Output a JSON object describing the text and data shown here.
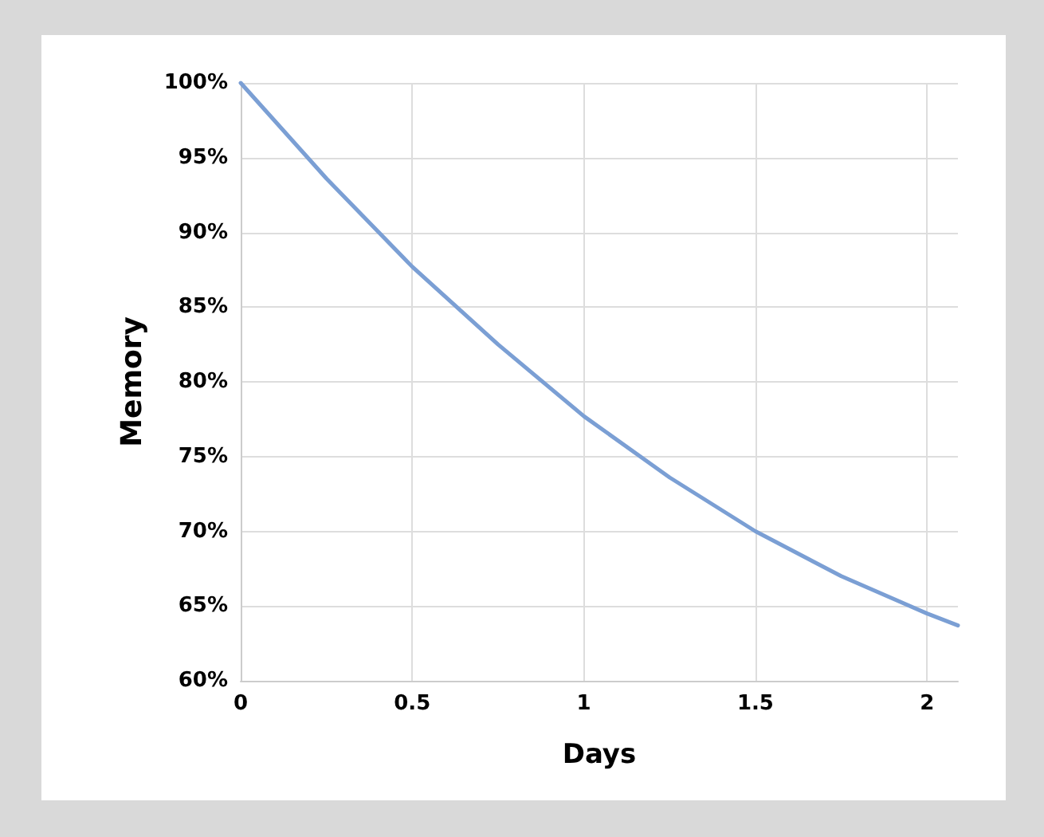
{
  "chart_data": {
    "type": "line",
    "xlabel": "Days",
    "ylabel": "Memory",
    "x": [
      0,
      0.25,
      0.5,
      0.75,
      1,
      1.25,
      1.5,
      1.75,
      2,
      2.09
    ],
    "series": [
      {
        "color": "#7b9fd4",
        "values": [
          100,
          93.6,
          87.7,
          82.5,
          77.7,
          73.6,
          70,
          67,
          64.5,
          63.7
        ]
      }
    ],
    "xlim": [
      0,
      2.09
    ],
    "xticks": [
      0,
      0.5,
      1,
      1.5,
      2
    ],
    "ylim": [
      60,
      100
    ],
    "yticks": [
      {
        "value": 60,
        "label": "60%"
      },
      {
        "value": 65,
        "label": "65%"
      },
      {
        "value": 70,
        "label": "70%"
      },
      {
        "value": 75,
        "label": "75%"
      },
      {
        "value": 80,
        "label": "80%"
      },
      {
        "value": 85,
        "label": "85%"
      },
      {
        "value": 90,
        "label": "90%"
      },
      {
        "value": 95,
        "label": "95%"
      },
      {
        "value": 100,
        "label": "100%"
      }
    ],
    "grid": true,
    "marker": "none",
    "line_style": "solid"
  }
}
